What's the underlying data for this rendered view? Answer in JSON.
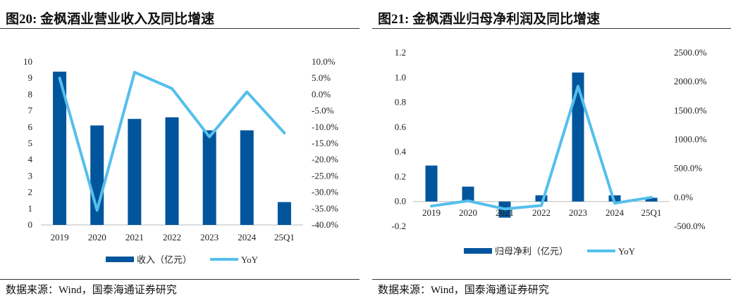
{
  "colors": {
    "bar": "#00559c",
    "line": "#55bfec",
    "rule": "#333333",
    "tick": "#555555"
  },
  "left": {
    "title": "图20: 金枫酒业营业收入及同比增速",
    "source": "数据来源：Wind，国泰海通证券研究"
  },
  "right": {
    "title": "图21: 金枫酒业归母净利润及同比增速",
    "source": "数据来源：Wind，国泰海通证券研究"
  },
  "chart_data": [
    {
      "type": "bar",
      "categories": [
        "2019",
        "2020",
        "2021",
        "2022",
        "2023",
        "2024",
        "25Q1"
      ],
      "series": [
        {
          "name": "收入（亿元）",
          "type": "bar",
          "axis": "left",
          "values": [
            9.4,
            6.1,
            6.5,
            6.6,
            5.8,
            5.8,
            1.4
          ]
        },
        {
          "name": "YoY",
          "type": "line",
          "axis": "right",
          "values": [
            5.0,
            -35.5,
            6.8,
            1.8,
            -13.0,
            0.8,
            -11.8
          ]
        }
      ],
      "y_left": {
        "min": 0,
        "max": 10,
        "step": 1,
        "ticks": [
          "0",
          "1",
          "2",
          "3",
          "4",
          "5",
          "6",
          "7",
          "8",
          "9",
          "10"
        ]
      },
      "y_right": {
        "min": -40,
        "max": 10,
        "step": 5,
        "ticks": [
          "-40.0%",
          "-35.0%",
          "-30.0%",
          "-25.0%",
          "-20.0%",
          "-15.0%",
          "-10.0%",
          "-5.0%",
          "0.0%",
          "5.0%",
          "10.0%"
        ]
      },
      "legend": {
        "position": "bottom",
        "bar_label": "收入（亿元）",
        "line_label": "YoY"
      },
      "grid": false
    },
    {
      "type": "bar",
      "categories": [
        "2019",
        "2020",
        "2021",
        "2022",
        "2023",
        "2024",
        "25Q1"
      ],
      "series": [
        {
          "name": "归母净利（亿元）",
          "type": "bar",
          "axis": "left",
          "values": [
            0.29,
            0.12,
            -0.13,
            0.05,
            1.04,
            0.05,
            0.03
          ]
        },
        {
          "name": "YoY",
          "type": "line",
          "axis": "right",
          "values": [
            -150,
            -60,
            -200,
            -140,
            1920,
            -100,
            0
          ]
        }
      ],
      "y_left": {
        "min": -0.2,
        "max": 1.2,
        "step": 0.2,
        "ticks": [
          "-0.2",
          "0.0",
          "0.2",
          "0.4",
          "0.6",
          "0.8",
          "1.0",
          "1.2"
        ]
      },
      "y_right": {
        "min": -500,
        "max": 2500,
        "step": 500,
        "ticks": [
          "-500.0%",
          "0.0%",
          "500.0%",
          "1000.0%",
          "1500.0%",
          "2000.0%",
          "2500.0%"
        ]
      },
      "legend": {
        "position": "bottom",
        "bar_label": "归母净利（亿元）",
        "line_label": "YoY"
      },
      "grid": false
    }
  ]
}
